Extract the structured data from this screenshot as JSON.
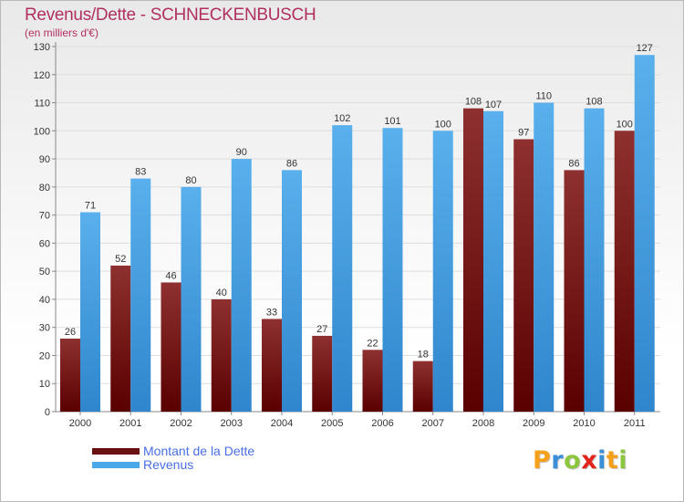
{
  "title": "Revenus/Dette - SCHNECKENBUSCH",
  "subtitle": "(en milliers d'€)",
  "legend": {
    "debt_label": "Montant de la Dette",
    "revenue_label": "Revenus"
  },
  "logo_text": "Proxiti",
  "colors": {
    "debt": "#7a1a1a",
    "revenue": "#4aa8e8",
    "title": "#b03060",
    "legend_text": "#4a6fe3"
  },
  "chart_data": {
    "type": "bar",
    "title": "Revenus/Dette - SCHNECKENBUSCH",
    "ylabel": "(en milliers d'€)",
    "xlabel": "",
    "categories": [
      "2000",
      "2001",
      "2002",
      "2003",
      "2004",
      "2005",
      "2006",
      "2007",
      "2008",
      "2009",
      "2010",
      "2011"
    ],
    "series": [
      {
        "name": "Montant de la Dette",
        "values": [
          26,
          52,
          46,
          40,
          33,
          27,
          22,
          18,
          108,
          97,
          86,
          100
        ]
      },
      {
        "name": "Revenus",
        "values": [
          71,
          83,
          80,
          90,
          86,
          102,
          101,
          100,
          107,
          110,
          108,
          127
        ]
      }
    ],
    "ylim": [
      0,
      130
    ],
    "yticks": [
      0,
      10,
      20,
      30,
      40,
      50,
      60,
      70,
      80,
      90,
      100,
      110,
      120,
      130
    ],
    "grid": true,
    "legend_position": "bottom-left"
  }
}
